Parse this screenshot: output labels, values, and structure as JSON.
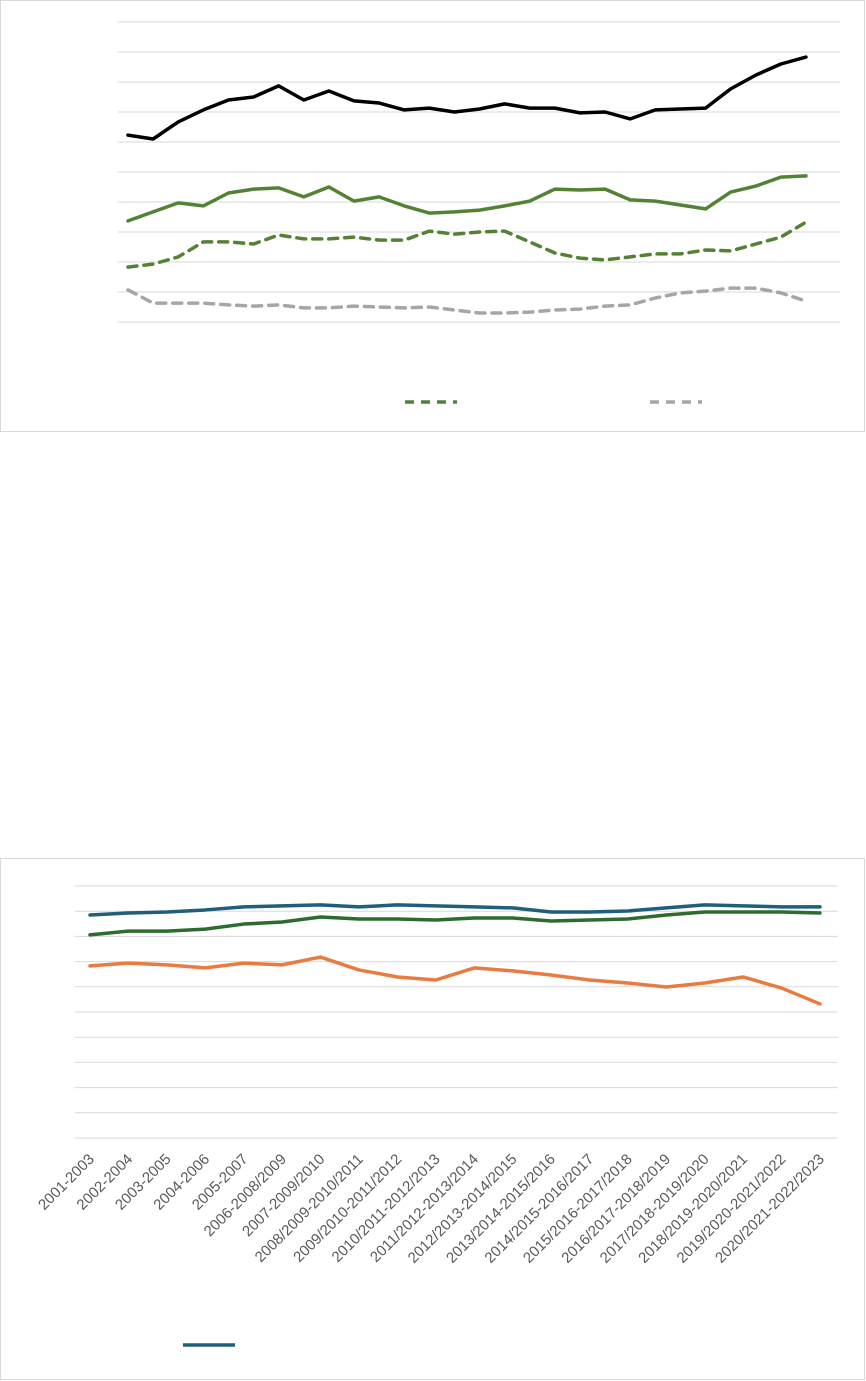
{
  "chart_data": [
    {
      "type": "line",
      "categories": [
        null,
        null,
        null,
        null,
        null,
        null,
        null,
        null,
        null,
        null,
        null,
        null,
        null,
        null,
        null,
        null,
        null,
        null,
        null,
        null,
        null,
        null,
        null,
        null,
        null,
        null,
        null,
        null
      ],
      "ylim": [
        0,
        10
      ],
      "yticks": [
        0,
        1,
        2,
        3,
        4,
        5,
        6,
        7,
        8,
        9,
        10
      ],
      "grid": true,
      "series": [
        {
          "color": "#000000",
          "dash": false,
          "in_legend": false,
          "values": [
            6.23,
            6.1,
            6.67,
            7.07,
            7.4,
            7.5,
            7.87,
            7.4,
            7.7,
            7.37,
            7.3,
            7.07,
            7.13,
            7.0,
            7.1,
            7.27,
            7.13,
            7.13,
            6.97,
            7.0,
            6.77,
            7.07,
            7.1,
            7.13,
            7.77,
            8.23,
            8.6,
            8.83
          ]
        },
        {
          "color": "#548235",
          "dash": false,
          "in_legend": false,
          "values": [
            3.37,
            3.67,
            3.97,
            3.87,
            4.3,
            4.43,
            4.47,
            4.17,
            4.5,
            4.03,
            4.17,
            3.87,
            3.63,
            3.67,
            3.73,
            3.87,
            4.03,
            4.43,
            4.4,
            4.43,
            4.07,
            4.03,
            3.9,
            3.77,
            4.33,
            4.53,
            4.83,
            4.87
          ]
        },
        {
          "color": "#548235",
          "dash": true,
          "in_legend": true,
          "values": [
            1.83,
            1.93,
            2.17,
            2.67,
            2.67,
            2.6,
            2.9,
            2.77,
            2.77,
            2.83,
            2.73,
            2.73,
            3.03,
            2.93,
            3.0,
            3.03,
            2.67,
            2.3,
            2.13,
            2.07,
            2.17,
            2.27,
            2.27,
            2.4,
            2.37,
            2.6,
            2.83,
            3.33
          ]
        },
        {
          "color": "#a6a6a6",
          "dash": true,
          "in_legend": true,
          "values": [
            1.07,
            0.63,
            0.63,
            0.63,
            0.57,
            0.53,
            0.57,
            0.47,
            0.47,
            0.53,
            0.5,
            0.47,
            0.5,
            0.4,
            0.3,
            0.3,
            0.33,
            0.4,
            0.43,
            0.53,
            0.57,
            0.8,
            0.97,
            1.03,
            1.13,
            1.13,
            0.97,
            0.7
          ]
        }
      ]
    },
    {
      "type": "line",
      "categories": [
        "2001-2003",
        "2002-2004",
        "2003-2005",
        "2004-2006",
        "2005-2007",
        "2006-2008/2009",
        "2007-2009/2010",
        "2008/2009-2010/2011",
        "2009/2010-2011/2012",
        "2010/2011-2012/2013",
        "2011/2012-2013/2014",
        "2012/2013-2014/2015",
        "2013/2014-2015/2016",
        "2014/2015-2016/2017",
        "2015/2016-2017/2018",
        "2016/2017-2018/2019",
        "2017/2018-2019/2020",
        "2018/2019-2020/2021",
        "2019/2020-2021/2022",
        "2020/2021-2022/2023"
      ],
      "ylim": [
        0,
        10
      ],
      "yticks": [
        0,
        1,
        2,
        3,
        4,
        5,
        6,
        7,
        8,
        9,
        10
      ],
      "grid": true,
      "series": [
        {
          "color": "#1f5f7a",
          "dash": false,
          "in_legend": true,
          "values": [
            8.85,
            8.93,
            8.97,
            9.05,
            9.17,
            9.21,
            9.25,
            9.17,
            9.25,
            9.21,
            9.17,
            9.13,
            8.97,
            8.97,
            9.01,
            9.13,
            9.25,
            9.21,
            9.17,
            9.17
          ]
        },
        {
          "color": "#2e6b30",
          "dash": false,
          "in_legend": false,
          "values": [
            8.06,
            8.21,
            8.21,
            8.29,
            8.49,
            8.57,
            8.77,
            8.69,
            8.69,
            8.65,
            8.73,
            8.73,
            8.61,
            8.65,
            8.69,
            8.85,
            8.97,
            8.97,
            8.97,
            8.93
          ]
        },
        {
          "color": "#e87b3f",
          "dash": false,
          "in_legend": false,
          "values": [
            6.83,
            6.94,
            6.87,
            6.75,
            6.94,
            6.87,
            7.18,
            6.67,
            6.39,
            6.27,
            6.75,
            6.63,
            6.47,
            6.27,
            6.15,
            5.99,
            6.15,
            6.39,
            5.95,
            5.32
          ]
        }
      ]
    }
  ]
}
